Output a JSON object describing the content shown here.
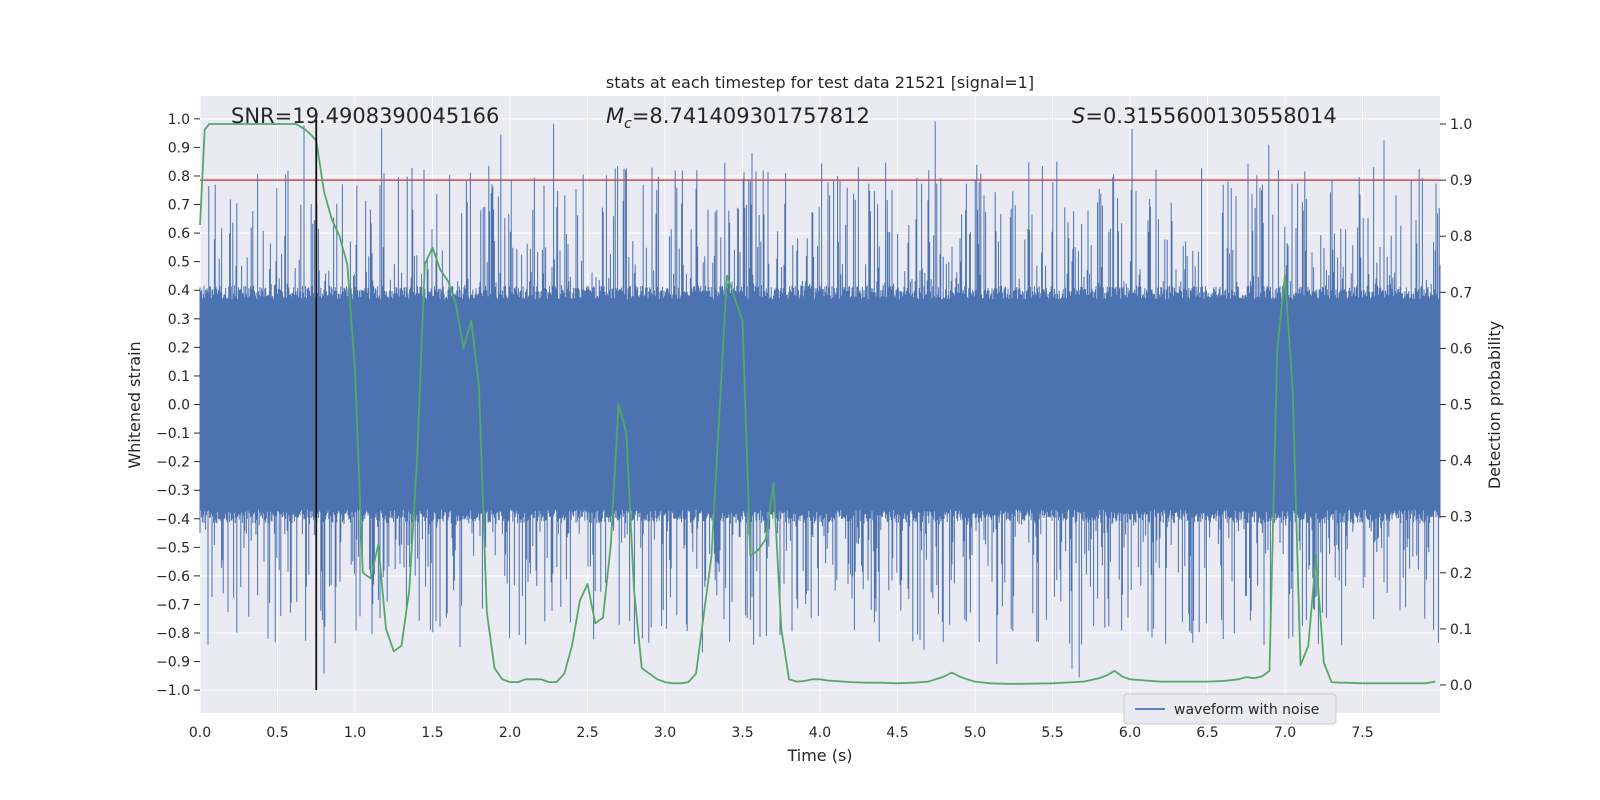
{
  "chart_data": {
    "type": "line",
    "title": "stats at each timestep for test data 21521 [signal=1]",
    "xlabel": "Time (s)",
    "ylabel_left": "Whitened strain",
    "ylabel_right": "Detection probability",
    "xlim": [
      0,
      8
    ],
    "ylim_left": [
      -1.08,
      1.08
    ],
    "ylim_right": [
      -0.05,
      1.05
    ],
    "x_ticks": [
      "0.0",
      "0.5",
      "1.0",
      "1.5",
      "2.0",
      "2.5",
      "3.0",
      "3.5",
      "4.0",
      "4.5",
      "5.0",
      "5.5",
      "6.0",
      "6.5",
      "7.0",
      "7.5"
    ],
    "y_left_ticks": [
      "1.0",
      "0.9",
      "0.8",
      "0.7",
      "0.6",
      "0.5",
      "0.4",
      "0.3",
      "0.2",
      "0.1",
      "0.0",
      "−0.1",
      "−0.2",
      "−0.3",
      "−0.4",
      "−0.5",
      "−0.6",
      "−0.7",
      "−0.8",
      "−0.9",
      "−1.0"
    ],
    "y_right_ticks": [
      "1.0",
      "0.9",
      "0.8",
      "0.7",
      "0.6",
      "0.5",
      "0.4",
      "0.3",
      "0.2",
      "0.1",
      "0.0"
    ],
    "grid": true,
    "legend_position": "lower-right",
    "annotations": {
      "snr": "SNR=19.4908390045166",
      "mc_symbol": "M",
      "mc_sub": "c",
      "mc_value": "=8.741409301757812",
      "s_symbol": "S",
      "s_value": "=0.3155600130558014"
    },
    "threshold": 0.9,
    "marker_time": 0.75,
    "series": [
      {
        "name": "waveform with noise",
        "color": "#4c72b0",
        "axis": "left",
        "sample_rate": 2048,
        "duration": 8,
        "envelope_typical": 0.4,
        "envelope_max": 1.0
      },
      {
        "color": "#55a868",
        "axis": "right",
        "x": [
          0.0,
          0.03,
          0.06,
          0.1,
          0.15,
          0.2,
          0.3,
          0.4,
          0.5,
          0.55,
          0.62,
          0.68,
          0.72,
          0.75,
          0.8,
          0.85,
          0.9,
          0.95,
          1.0,
          1.05,
          1.1,
          1.15,
          1.2,
          1.25,
          1.3,
          1.35,
          1.4,
          1.45,
          1.5,
          1.55,
          1.6,
          1.65,
          1.7,
          1.75,
          1.8,
          1.85,
          1.9,
          1.95,
          2.0,
          2.05,
          2.1,
          2.15,
          2.2,
          2.25,
          2.3,
          2.35,
          2.4,
          2.45,
          2.5,
          2.55,
          2.6,
          2.65,
          2.7,
          2.75,
          2.8,
          2.85,
          2.9,
          2.95,
          3.0,
          3.05,
          3.1,
          3.15,
          3.2,
          3.3,
          3.4,
          3.5,
          3.55,
          3.6,
          3.65,
          3.7,
          3.75,
          3.8,
          3.85,
          3.9,
          3.95,
          4.0,
          4.05,
          4.1,
          4.2,
          4.3,
          4.4,
          4.5,
          4.6,
          4.7,
          4.8,
          4.85,
          4.9,
          4.95,
          5.0,
          5.1,
          5.2,
          5.3,
          5.5,
          5.7,
          5.8,
          5.85,
          5.9,
          5.95,
          6.0,
          6.1,
          6.2,
          6.3,
          6.4,
          6.5,
          6.6,
          6.7,
          6.75,
          6.8,
          6.85,
          6.9,
          6.95,
          7.0,
          7.05,
          7.1,
          7.15,
          7.2,
          7.25,
          7.3,
          7.35,
          7.4,
          7.5,
          7.6,
          7.7,
          7.8,
          7.9,
          7.97
        ],
        "values": [
          0.82,
          0.99,
          1.0,
          1.0,
          1.0,
          1.0,
          1.0,
          1.0,
          1.0,
          1.0,
          1.0,
          0.99,
          0.98,
          0.97,
          0.88,
          0.83,
          0.8,
          0.75,
          0.56,
          0.2,
          0.19,
          0.25,
          0.1,
          0.06,
          0.07,
          0.17,
          0.4,
          0.75,
          0.78,
          0.74,
          0.72,
          0.68,
          0.6,
          0.65,
          0.53,
          0.13,
          0.03,
          0.01,
          0.005,
          0.005,
          0.01,
          0.01,
          0.01,
          0.005,
          0.005,
          0.02,
          0.07,
          0.15,
          0.18,
          0.11,
          0.12,
          0.25,
          0.5,
          0.45,
          0.17,
          0.03,
          0.02,
          0.01,
          0.005,
          0.003,
          0.003,
          0.005,
          0.02,
          0.23,
          0.73,
          0.65,
          0.23,
          0.24,
          0.26,
          0.36,
          0.1,
          0.01,
          0.006,
          0.007,
          0.01,
          0.01,
          0.008,
          0.007,
          0.005,
          0.004,
          0.004,
          0.003,
          0.004,
          0.006,
          0.015,
          0.022,
          0.015,
          0.01,
          0.006,
          0.003,
          0.002,
          0.002,
          0.003,
          0.006,
          0.012,
          0.017,
          0.025,
          0.015,
          0.01,
          0.008,
          0.006,
          0.006,
          0.006,
          0.006,
          0.007,
          0.01,
          0.014,
          0.012,
          0.015,
          0.025,
          0.6,
          0.73,
          0.52,
          0.035,
          0.07,
          0.23,
          0.04,
          0.005,
          0.004,
          0.004,
          0.003,
          0.003,
          0.003,
          0.003,
          0.003,
          0.006
        ]
      }
    ]
  }
}
